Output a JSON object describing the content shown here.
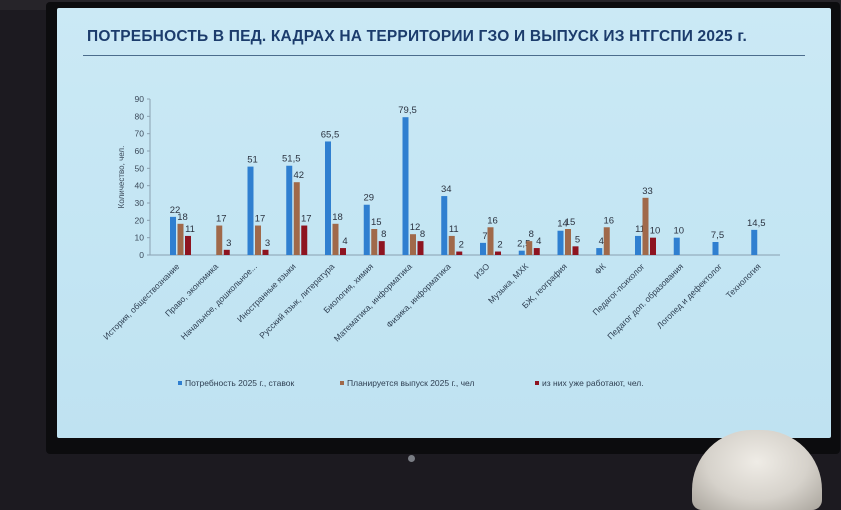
{
  "slide": {
    "title": "ПОТРЕБНОСТЬ В ПЕД. КАДРАХ НА ТЕРРИТОРИИ ГЗО И ВЫПУСК ИЗ НТГСПИ 2025 г."
  },
  "chart_data": {
    "type": "bar",
    "ylabel": "Количество, чел.",
    "ylim": [
      0,
      90
    ],
    "yticks": [
      0,
      10,
      20,
      30,
      40,
      50,
      60,
      70,
      80,
      90
    ],
    "grid": false,
    "legend_position": "bottom",
    "categories": [
      "История, обществознание",
      "Право, экономика",
      "Начальное, дошкольное...",
      "Иностранные языки",
      "Русский язык, литература",
      "Биология, химия",
      "Математика, информатика",
      "Физика, информатика",
      "ИЗО",
      "Музыка, МХК",
      "БЖ, география",
      "ФК",
      "Педагог-психолог",
      "Педагог доп. образования",
      "Логопед и дефектолог",
      "Технология"
    ],
    "series": [
      {
        "name": "Потребность 2025 г., ставок",
        "color": "#2f7fd0",
        "values": [
          22,
          null,
          51,
          51.5,
          65.5,
          29,
          79.5,
          34,
          7,
          2.5,
          14,
          4,
          11,
          10,
          7.5,
          14.5
        ],
        "labels": [
          "22",
          "",
          "51",
          "51,5",
          "65,5",
          "29",
          "79,5",
          "34",
          "7",
          "2,5",
          "14",
          "4",
          "11",
          "10",
          "7,5",
          "14,5"
        ]
      },
      {
        "name": "Планируется выпуск 2025 г., чел",
        "color": "#a0694a",
        "values": [
          18,
          17,
          17,
          42,
          18,
          15,
          12,
          11,
          16,
          8,
          15,
          16,
          33,
          null,
          null,
          null
        ],
        "labels": [
          "18",
          "17",
          "17",
          "42",
          "18",
          "15",
          "12",
          "11",
          "16",
          "8",
          "15",
          "16",
          "33",
          "",
          "",
          ""
        ]
      },
      {
        "name": "из них уже работают, чел.",
        "color": "#8e1420",
        "values": [
          11,
          3,
          3,
          17,
          4,
          8,
          8,
          2,
          2,
          4,
          5,
          null,
          10,
          null,
          null,
          null
        ],
        "labels": [
          "11",
          "3",
          "3",
          "17",
          "4",
          "8",
          "8",
          "2",
          "2",
          "4",
          "5",
          "",
          "10",
          "",
          "",
          ""
        ]
      }
    ]
  }
}
